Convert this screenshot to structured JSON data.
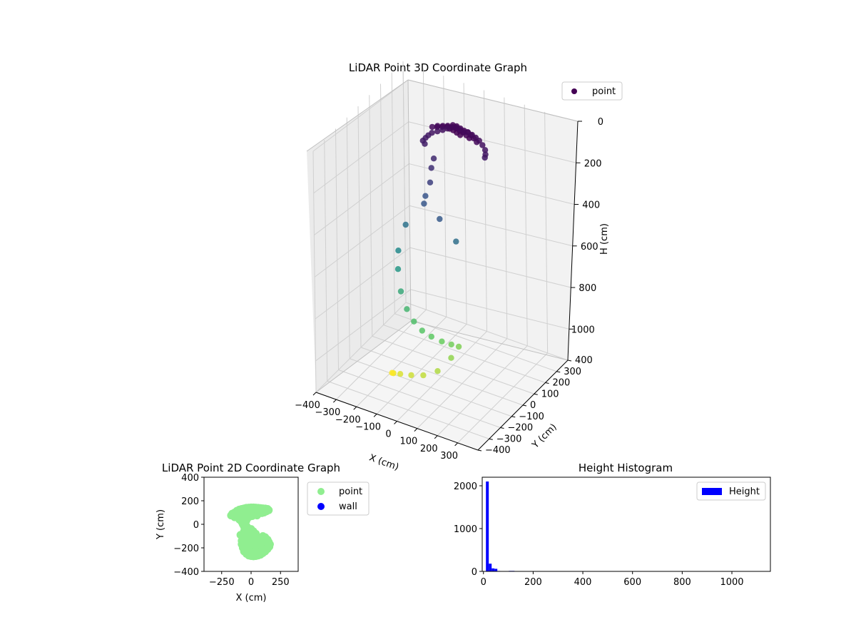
{
  "chart_data": [
    {
      "type": "scatter3d",
      "title": "LiDAR Point 3D Coordinate Graph",
      "xlabel": "X (cm)",
      "ylabel": "Y (cm)",
      "zlabel": "H (cm)",
      "xlim": [
        -400,
        400
      ],
      "ylim": [
        -400,
        400
      ],
      "zlim": [
        0,
        1150
      ],
      "z_inverted": true,
      "xticks": [
        -400,
        -300,
        -200,
        -100,
        0,
        100,
        200,
        300
      ],
      "yticks": [
        -400,
        -300,
        -200,
        -100,
        0,
        100,
        200,
        300,
        400
      ],
      "zticks": [
        0,
        200,
        400,
        600,
        800,
        1000
      ],
      "colormap": "viridis",
      "grid": true,
      "legend": {
        "entries": [
          "point"
        ],
        "placement": "upper-right"
      },
      "series": [
        {
          "name": "point",
          "color": "#440154",
          "points": [
            [
              -20,
              150,
              50
            ],
            [
              0,
              152,
              45
            ],
            [
              20,
              150,
              48
            ],
            [
              40,
              148,
              52
            ],
            [
              60,
              150,
              47
            ],
            [
              80,
              148,
              50
            ],
            [
              100,
              145,
              55
            ],
            [
              120,
              140,
              60
            ],
            [
              140,
              132,
              70
            ],
            [
              160,
              120,
              80
            ],
            [
              170,
              105,
              90
            ],
            [
              175,
              90,
              95
            ],
            [
              -40,
              145,
              60
            ],
            [
              -60,
              138,
              70
            ],
            [
              -80,
              128,
              78
            ],
            [
              -100,
              115,
              85
            ],
            [
              -110,
              100,
              92
            ],
            [
              -115,
              85,
              98
            ],
            [
              -120,
              70,
              105
            ],
            [
              -105,
              60,
              110
            ],
            [
              -10,
              140,
              30
            ],
            [
              10,
              138,
              28
            ],
            [
              30,
              135,
              30
            ],
            [
              50,
              132,
              32
            ],
            [
              70,
              128,
              30
            ],
            [
              90,
              122,
              35
            ],
            [
              110,
              112,
              38
            ],
            [
              130,
              100,
              42
            ],
            [
              -30,
              130,
              35
            ],
            [
              -50,
              122,
              38
            ],
            [
              -70,
              112,
              40
            ],
            [
              -90,
              100,
              45
            ],
            [
              0,
              120,
              25
            ],
            [
              20,
              115,
              22
            ],
            [
              40,
              110,
              24
            ],
            [
              60,
              105,
              22
            ],
            [
              80,
              98,
              26
            ],
            [
              100,
              90,
              28
            ],
            [
              -20,
              110,
              26
            ],
            [
              -40,
              100,
              28
            ],
            [
              -60,
              90,
              30
            ],
            [
              0,
              95,
              20
            ],
            [
              20,
              90,
              18
            ],
            [
              40,
              85,
              20
            ],
            [
              60,
              80,
              22
            ],
            [
              -50,
              40,
              150
            ],
            [
              -40,
              0,
              170
            ],
            [
              -30,
              -30,
              220
            ],
            [
              -60,
              -20,
              300
            ],
            [
              -45,
              -60,
              310
            ],
            [
              60,
              -110,
              320
            ],
            [
              140,
              -110,
              400
            ],
            [
              -120,
              -90,
              420
            ],
            [
              -130,
              -140,
              520
            ],
            [
              -110,
              -180,
              580
            ],
            [
              -80,
              -210,
              660
            ],
            [
              -40,
              -230,
              720
            ],
            [
              0,
              -240,
              760
            ],
            [
              40,
              -240,
              790
            ],
            [
              80,
              -230,
              810
            ],
            [
              120,
              -210,
              830
            ],
            [
              150,
              -180,
              850
            ],
            [
              170,
              -150,
              870
            ],
            [
              160,
              -200,
              900
            ],
            [
              120,
              -250,
              950
            ],
            [
              60,
              -270,
              980
            ],
            [
              0,
              -270,
              1000
            ],
            [
              -60,
              -260,
              1020
            ],
            [
              -110,
              -230,
              1050
            ],
            [
              -140,
              -190,
              1080
            ]
          ]
        }
      ]
    },
    {
      "type": "scatter",
      "title": "LiDAR Point 2D Coordinate Graph",
      "xlabel": "X (cm)",
      "ylabel": "Y (cm)",
      "xlim": [
        -400,
        400
      ],
      "ylim": [
        -400,
        400
      ],
      "xticks": [
        -250,
        0,
        250
      ],
      "yticks": [
        -400,
        -200,
        0,
        200,
        400
      ],
      "legend": {
        "entries": [
          "point",
          "wall"
        ],
        "placement": "outside-right"
      },
      "series": [
        {
          "name": "point",
          "color": "#90ee90",
          "points": [
            [
              -150,
              80
            ],
            [
              -140,
              100
            ],
            [
              -120,
              115
            ],
            [
              -100,
              125
            ],
            [
              -80,
              130
            ],
            [
              -60,
              135
            ],
            [
              -40,
              140
            ],
            [
              -20,
              142
            ],
            [
              0,
              143
            ],
            [
              20,
              143
            ],
            [
              40,
              142
            ],
            [
              60,
              140
            ],
            [
              80,
              138
            ],
            [
              100,
              136
            ],
            [
              120,
              134
            ],
            [
              140,
              130
            ],
            [
              130,
              110
            ],
            [
              110,
              100
            ],
            [
              90,
              95
            ],
            [
              60,
              92
            ],
            [
              30,
              90
            ],
            [
              0,
              88
            ],
            [
              -30,
              85
            ],
            [
              -60,
              80
            ],
            [
              -90,
              75
            ],
            [
              -120,
              70
            ],
            [
              -140,
              60
            ],
            [
              -100,
              40
            ],
            [
              -80,
              20
            ],
            [
              -70,
              0
            ],
            [
              -60,
              -20
            ],
            [
              -50,
              -40
            ],
            [
              -40,
              -60
            ],
            [
              -20,
              -50
            ],
            [
              0,
              -40
            ],
            [
              20,
              -60
            ],
            [
              40,
              -80
            ],
            [
              -60,
              -60
            ],
            [
              -40,
              -80
            ],
            [
              -20,
              -100
            ],
            [
              0,
              -110
            ],
            [
              20,
              -100
            ],
            [
              -70,
              -110
            ],
            [
              -80,
              -140
            ],
            [
              -80,
              -170
            ],
            [
              -70,
              -200
            ],
            [
              -60,
              -230
            ],
            [
              -40,
              -250
            ],
            [
              -20,
              -265
            ],
            [
              0,
              -270
            ],
            [
              20,
              -272
            ],
            [
              40,
              -270
            ],
            [
              60,
              -265
            ],
            [
              80,
              -258
            ],
            [
              100,
              -245
            ],
            [
              120,
              -230
            ],
            [
              140,
              -210
            ],
            [
              155,
              -190
            ],
            [
              160,
              -170
            ],
            [
              150,
              -150
            ],
            [
              140,
              -130
            ],
            [
              120,
              -110
            ],
            [
              100,
              -100
            ],
            [
              -50,
              -140
            ],
            [
              -30,
              -170
            ],
            [
              0,
              -190
            ],
            [
              30,
              -200
            ],
            [
              60,
              -210
            ],
            [
              90,
              -200
            ],
            [
              110,
              -185
            ],
            [
              130,
              -170
            ],
            [
              -40,
              -210
            ],
            [
              -10,
              -230
            ],
            [
              20,
              -240
            ],
            [
              50,
              -245
            ],
            [
              80,
              -235
            ],
            [
              100,
              -220
            ],
            [
              120,
              -200
            ],
            [
              -60,
              -180
            ],
            [
              -30,
              -140
            ],
            [
              0,
              -150
            ],
            [
              30,
              -160
            ],
            [
              60,
              -170
            ],
            [
              90,
              -160
            ],
            [
              110,
              -140
            ],
            [
              130,
              -150
            ],
            [
              -80,
              100
            ],
            [
              -40,
              110
            ],
            [
              0,
              115
            ],
            [
              40,
              118
            ],
            [
              80,
              115
            ],
            [
              120,
              118
            ],
            [
              -120,
              95
            ],
            [
              -20,
              60
            ],
            [
              -40,
              30
            ],
            [
              -55,
              10
            ],
            [
              -35,
              -20
            ],
            [
              -30,
              100
            ],
            [
              10,
              70
            ],
            [
              50,
              75
            ],
            [
              100,
              120
            ],
            [
              150,
              120
            ],
            [
              -160,
              90
            ],
            [
              -170,
              75
            ],
            [
              60,
              -130
            ],
            [
              80,
              -120
            ],
            [
              -90,
              -90
            ],
            [
              10,
              -80
            ]
          ]
        },
        {
          "name": "wall",
          "color": "#0000ff",
          "points": []
        }
      ]
    },
    {
      "type": "bar",
      "subtype": "histogram",
      "title": "Height Histogram",
      "xlabel": "",
      "ylabel": "",
      "xlim": [
        -5,
        1155
      ],
      "ylim": [
        0,
        2200
      ],
      "xticks": [
        0,
        200,
        400,
        600,
        800,
        1000
      ],
      "yticks": [
        0,
        1000,
        2000
      ],
      "legend": {
        "entries": [
          "Height"
        ],
        "placement": "upper-right"
      },
      "series": [
        {
          "name": "Height",
          "color": "#0000ff",
          "bin_width": 11.5,
          "bins": [
            {
              "x0": 10,
              "count": 2100
            },
            {
              "x0": 21.5,
              "count": 180
            },
            {
              "x0": 33,
              "count": 70
            },
            {
              "x0": 44.5,
              "count": 60
            },
            {
              "x0": 56,
              "count": 10
            },
            {
              "x0": 67.5,
              "count": 5
            },
            {
              "x0": 79,
              "count": 3
            },
            {
              "x0": 90.5,
              "count": 3
            },
            {
              "x0": 102,
              "count": 12
            },
            {
              "x0": 113.5,
              "count": 12
            },
            {
              "x0": 125,
              "count": 4
            },
            {
              "x0": 136.5,
              "count": 3
            },
            {
              "x0": 148,
              "count": 3
            },
            {
              "x0": 159.5,
              "count": 2
            },
            {
              "x0": 171,
              "count": 2
            },
            {
              "x0": 182.5,
              "count": 2
            },
            {
              "x0": 194,
              "count": 3
            },
            {
              "x0": 205.5,
              "count": 2
            },
            {
              "x0": 217,
              "count": 2
            },
            {
              "x0": 228.5,
              "count": 2
            },
            {
              "x0": 240,
              "count": 2
            },
            {
              "x0": 251.5,
              "count": 2
            },
            {
              "x0": 263,
              "count": 2
            },
            {
              "x0": 274.5,
              "count": 3
            },
            {
              "x0": 286,
              "count": 2
            }
          ]
        }
      ]
    }
  ]
}
